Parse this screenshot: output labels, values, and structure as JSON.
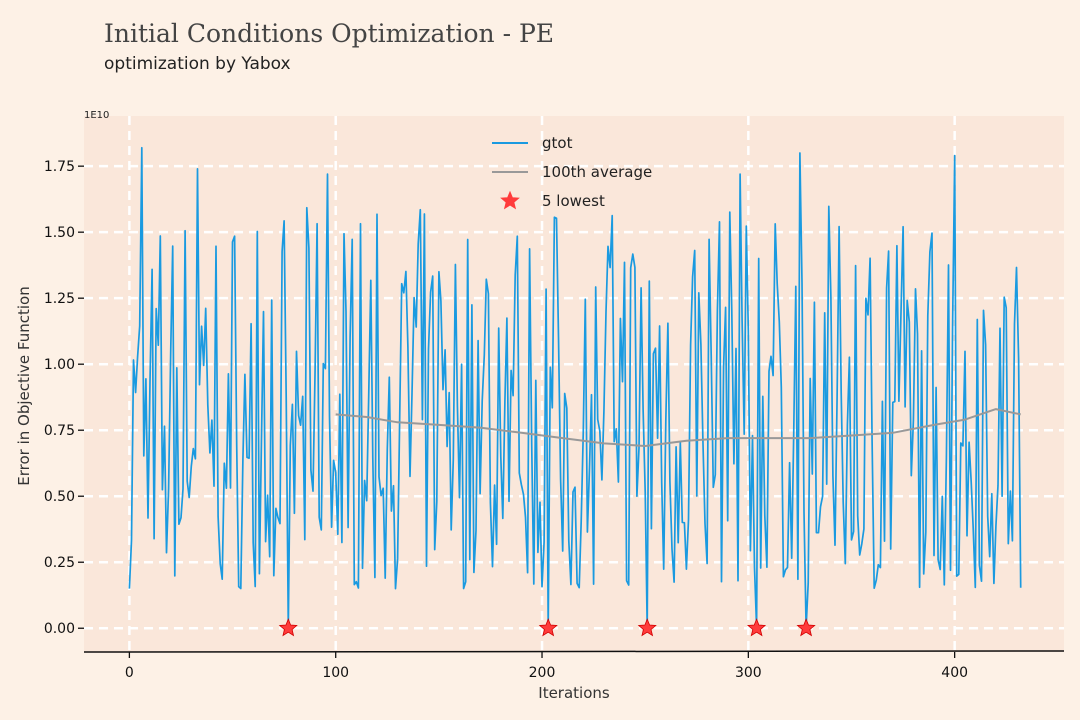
{
  "chart_data": {
    "type": "line",
    "title": "Initial Conditions Optimization - PE",
    "subtitle": "optimization by Yabox",
    "xlabel": "Iterations",
    "ylabel": "Error in Objective Function",
    "y_scale_label": "1E10",
    "xlim": [
      -22,
      453
    ],
    "ylim": [
      -0.09,
      1.94
    ],
    "x_ticks": [
      0,
      100,
      200,
      300,
      400
    ],
    "y_ticks": [
      0.0,
      0.25,
      0.5,
      0.75,
      1.0,
      1.25,
      1.5,
      1.75
    ],
    "y_tick_labels": [
      "0.00",
      "0.25",
      "0.50",
      "0.75",
      "1.00",
      "1.25",
      "1.50",
      "1.75"
    ],
    "grid": true,
    "legend_placement": "top-center",
    "series": [
      {
        "name": "gtot",
        "color": "#1a9ae0",
        "x_range": [
          0,
          432
        ],
        "y_min": 0.0,
        "y_max": 1.82,
        "y_mean": 0.75,
        "peaks": [
          [
            6,
            1.82
          ],
          [
            33,
            1.74
          ],
          [
            96,
            1.72
          ],
          [
            296,
            1.72
          ],
          [
            325,
            1.8
          ],
          [
            400,
            1.79
          ]
        ]
      },
      {
        "name": "100th average",
        "color": "#999999",
        "points": [
          [
            100,
            0.81
          ],
          [
            115,
            0.8
          ],
          [
            130,
            0.78
          ],
          [
            150,
            0.77
          ],
          [
            170,
            0.76
          ],
          [
            190,
            0.74
          ],
          [
            210,
            0.72
          ],
          [
            230,
            0.7
          ],
          [
            250,
            0.69
          ],
          [
            270,
            0.71
          ],
          [
            290,
            0.72
          ],
          [
            310,
            0.72
          ],
          [
            330,
            0.72
          ],
          [
            350,
            0.73
          ],
          [
            370,
            0.74
          ],
          [
            390,
            0.77
          ],
          [
            405,
            0.79
          ],
          [
            420,
            0.83
          ],
          [
            432,
            0.81
          ]
        ]
      },
      {
        "name": "5 lowest",
        "color": "#ff3b3b",
        "points": [
          [
            77,
            0.0
          ],
          [
            203,
            0.0
          ],
          [
            251,
            0.0
          ],
          [
            304,
            0.0
          ],
          [
            328,
            0.0
          ]
        ]
      }
    ]
  }
}
